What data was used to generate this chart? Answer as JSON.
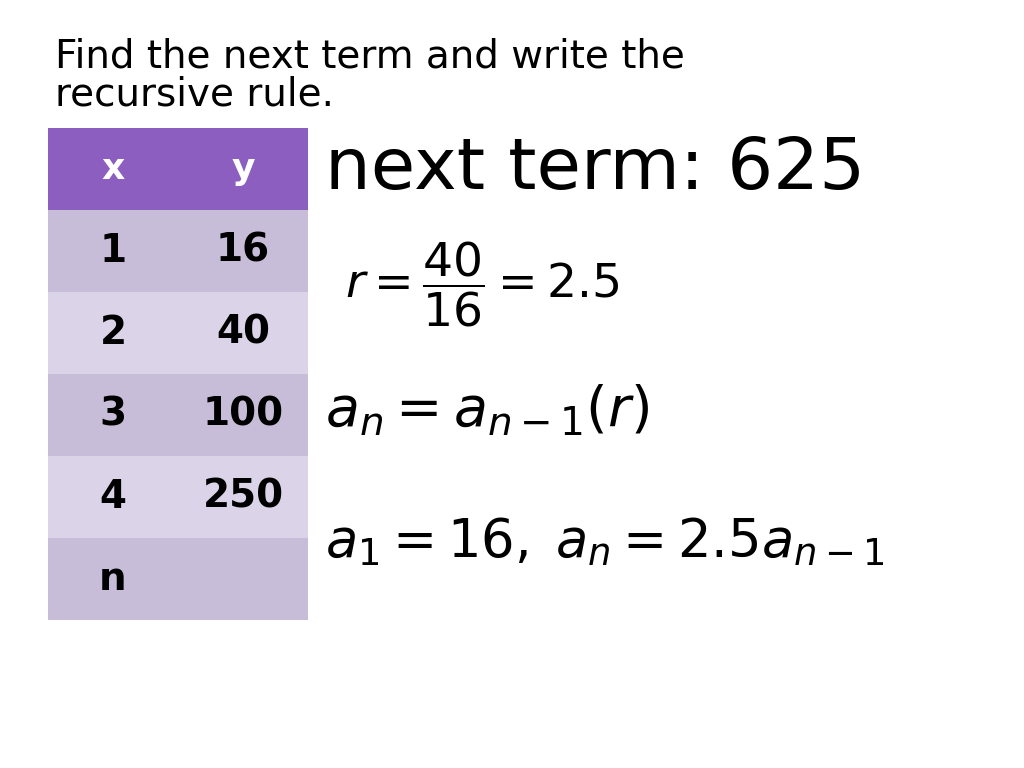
{
  "title_line1": "Find the next term and write the",
  "title_line2": "recursive rule.",
  "table_header_color": "#8B5EBF",
  "table_row_colors": [
    "#C8BDD8",
    "#DBD3E8",
    "#C8BDD8",
    "#DBD3E8",
    "#C8BDD8"
  ],
  "table_x_col": [
    "x",
    "1",
    "2",
    "3",
    "4",
    "n"
  ],
  "table_y_col": [
    "y",
    "16",
    "40",
    "100",
    "250",
    ""
  ],
  "next_term_text": "next term: 625",
  "bg_color": "#FFFFFF",
  "text_color": "#000000",
  "header_text_color": "#FFFFFF",
  "title_fontsize": 28,
  "header_fontsize": 26,
  "cell_fontsize": 28,
  "next_term_fontsize": 52,
  "math_fontsize": 34
}
